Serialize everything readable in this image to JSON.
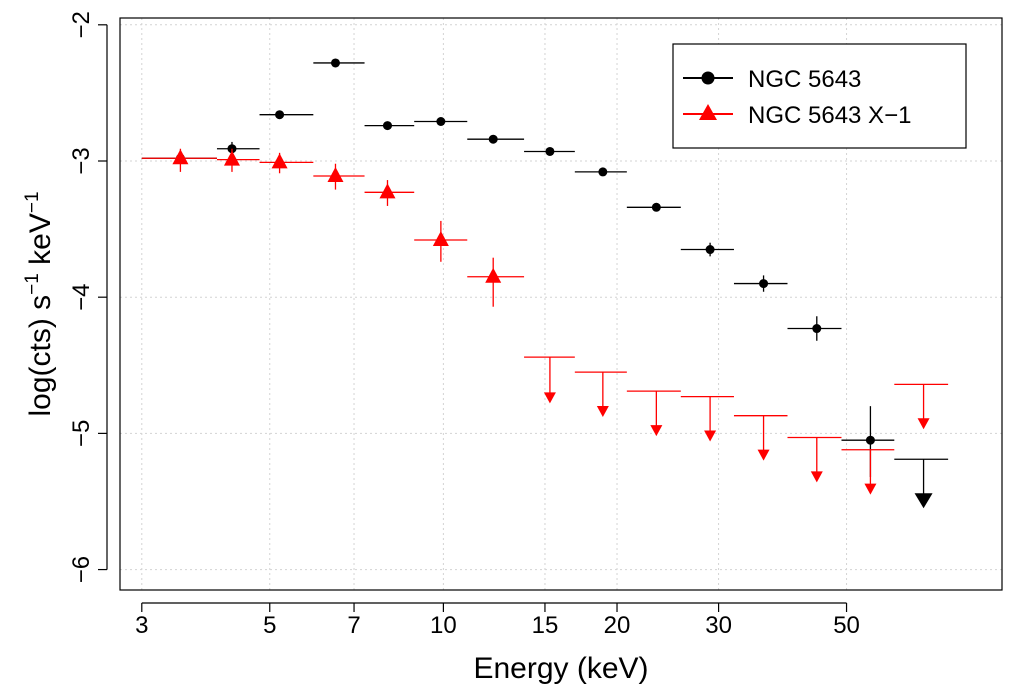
{
  "chart_data": {
    "type": "scatter",
    "title": "",
    "xlabel": "Energy (keV)",
    "ylabel_main": "log(cts) s",
    "ylabel_sup1": "−1",
    "ylabel_mid": " keV",
    "ylabel_sup2": "−1",
    "x_scale": "log",
    "xlim": [
      2.75,
      93
    ],
    "ylim": [
      -6.15,
      -1.95
    ],
    "x_ticks": [
      3,
      5,
      7,
      10,
      15,
      20,
      30,
      50
    ],
    "x_tick_labels": [
      "3",
      "5",
      "7",
      "10",
      "15",
      "20",
      "30",
      "50"
    ],
    "y_ticks": [
      -2,
      -3,
      -4,
      -5,
      -6
    ],
    "y_tick_labels": [
      "−2",
      "−3",
      "−4",
      "−5",
      "−6"
    ],
    "grid": true,
    "legend": {
      "position": "top-right",
      "entries": [
        {
          "label": "NGC 5643",
          "color": "#000000",
          "marker": "circle"
        },
        {
          "label": "NGC 5643 X−1",
          "color": "#ff0000",
          "marker": "triangle"
        }
      ]
    },
    "series": [
      {
        "name": "NGC 5643",
        "color": "#000000",
        "marker": "circle",
        "points": [
          {
            "x": 3.5,
            "xlo": 3.0,
            "xhi": 4.05,
            "y": -2.98
          },
          {
            "x": 4.3,
            "xlo": 4.05,
            "xhi": 4.8,
            "y": -2.91,
            "ylo": -2.96,
            "yhi": -2.86
          },
          {
            "x": 5.2,
            "xlo": 4.8,
            "xhi": 5.95,
            "y": -2.66
          },
          {
            "x": 6.5,
            "xlo": 5.95,
            "xhi": 7.3,
            "y": -2.28
          },
          {
            "x": 8.0,
            "xlo": 7.3,
            "xhi": 8.9,
            "y": -2.74
          },
          {
            "x": 9.9,
            "xlo": 8.9,
            "xhi": 11.0,
            "y": -2.71
          },
          {
            "x": 12.2,
            "xlo": 11.0,
            "xhi": 13.8,
            "y": -2.84
          },
          {
            "x": 15.3,
            "xlo": 13.8,
            "xhi": 16.9,
            "y": -2.93
          },
          {
            "x": 18.9,
            "xlo": 16.9,
            "xhi": 20.8,
            "y": -3.08
          },
          {
            "x": 23.4,
            "xlo": 20.8,
            "xhi": 25.8,
            "y": -3.34
          },
          {
            "x": 29.0,
            "xlo": 25.8,
            "xhi": 31.9,
            "y": -3.65,
            "ylo": -3.7,
            "yhi": -3.6
          },
          {
            "x": 35.9,
            "xlo": 31.9,
            "xhi": 39.5,
            "y": -3.9,
            "ylo": -3.96,
            "yhi": -3.84
          },
          {
            "x": 44.4,
            "xlo": 39.5,
            "xhi": 49.0,
            "y": -4.23,
            "ylo": -4.32,
            "yhi": -4.14
          },
          {
            "x": 55.0,
            "xlo": 49.0,
            "xhi": 60.5,
            "y": -5.05,
            "ylo": -5.32,
            "yhi": -4.8
          }
        ],
        "upper_limits": [
          {
            "x": 68.0,
            "xlo": 60.5,
            "xhi": 75.0,
            "y": -5.19,
            "arrow_to": -5.55
          }
        ]
      },
      {
        "name": "NGC 5643 X−1",
        "color": "#ff0000",
        "marker": "triangle",
        "points": [
          {
            "x": 3.5,
            "xlo": 3.0,
            "xhi": 4.05,
            "y": -2.98,
            "ylo": -3.08,
            "yhi": -2.91
          },
          {
            "x": 4.3,
            "xlo": 4.05,
            "xhi": 4.8,
            "y": -2.99,
            "ylo": -3.08,
            "yhi": -2.91
          },
          {
            "x": 5.2,
            "xlo": 4.8,
            "xhi": 5.95,
            "y": -3.01,
            "ylo": -3.09,
            "yhi": -2.94
          },
          {
            "x": 6.5,
            "xlo": 5.95,
            "xhi": 7.3,
            "y": -3.11,
            "ylo": -3.21,
            "yhi": -3.02
          },
          {
            "x": 8.0,
            "xlo": 7.3,
            "xhi": 8.9,
            "y": -3.23,
            "ylo": -3.33,
            "yhi": -3.14
          },
          {
            "x": 9.9,
            "xlo": 8.9,
            "xhi": 11.0,
            "y": -3.58,
            "ylo": -3.74,
            "yhi": -3.44
          },
          {
            "x": 12.2,
            "xlo": 11.0,
            "xhi": 13.8,
            "y": -3.85,
            "ylo": -4.07,
            "yhi": -3.71
          }
        ],
        "upper_limits": [
          {
            "x": 15.3,
            "xlo": 13.8,
            "xhi": 16.9,
            "y": -4.44,
            "arrow_to": -4.78
          },
          {
            "x": 18.9,
            "xlo": 16.9,
            "xhi": 20.8,
            "y": -4.55,
            "arrow_to": -4.88
          },
          {
            "x": 23.4,
            "xlo": 20.8,
            "xhi": 25.8,
            "y": -4.69,
            "arrow_to": -5.02
          },
          {
            "x": 29.0,
            "xlo": 25.8,
            "xhi": 31.9,
            "y": -4.73,
            "arrow_to": -5.06
          },
          {
            "x": 35.9,
            "xlo": 31.9,
            "xhi": 39.5,
            "y": -4.87,
            "arrow_to": -5.2
          },
          {
            "x": 44.4,
            "xlo": 39.5,
            "xhi": 49.0,
            "y": -5.03,
            "arrow_to": -5.36
          },
          {
            "x": 55.0,
            "xlo": 49.0,
            "xhi": 60.5,
            "y": -5.12,
            "arrow_to": -5.45
          },
          {
            "x": 68.0,
            "xlo": 60.5,
            "xhi": 75.0,
            "y": -4.64,
            "arrow_to": -4.97
          }
        ]
      }
    ]
  }
}
